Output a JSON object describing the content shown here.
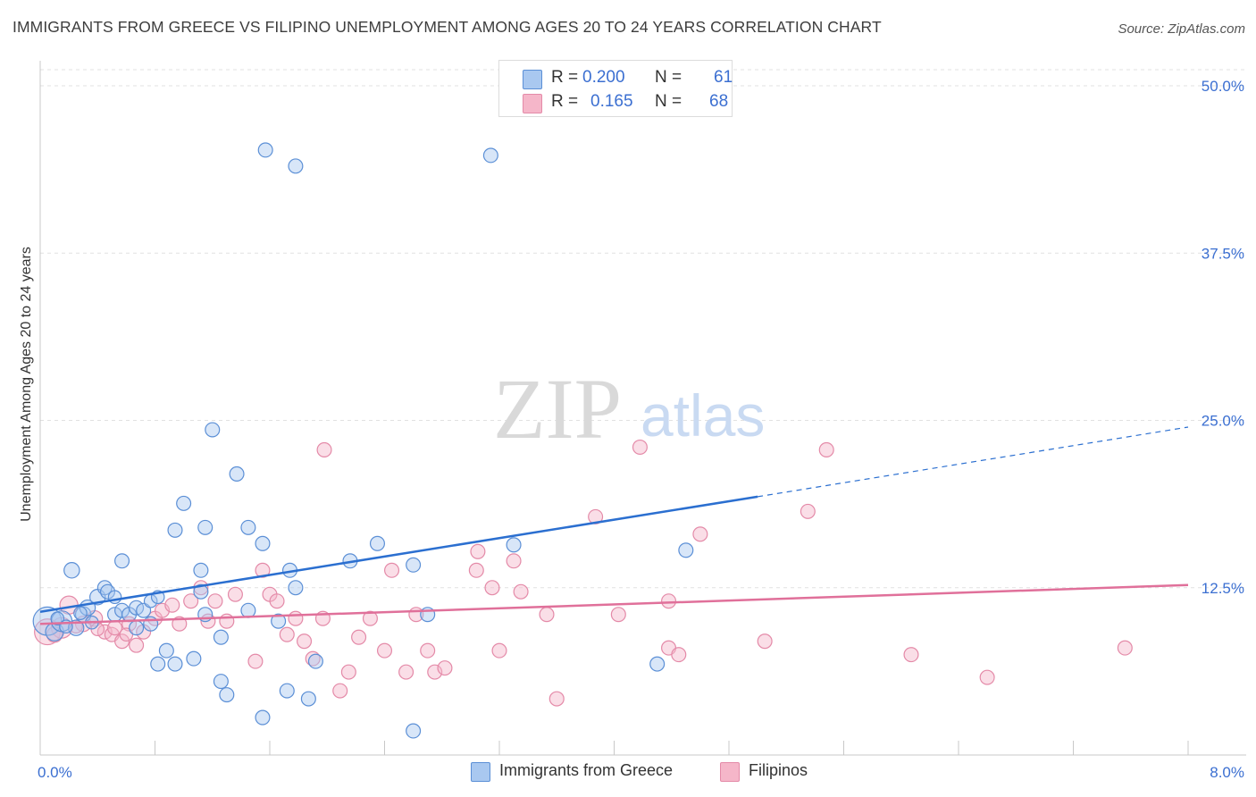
{
  "title": "IMMIGRANTS FROM GREECE VS FILIPINO UNEMPLOYMENT AMONG AGES 20 TO 24 YEARS CORRELATION CHART",
  "source": "Source: ZipAtlas.com",
  "watermark": {
    "zip": "ZIP",
    "atlas": "atlas"
  },
  "colors": {
    "blue_fill": "#a9c8f0",
    "blue_stroke": "#5b8fd6",
    "blue_line": "#2b6fd0",
    "pink_fill": "#f5b6c9",
    "pink_stroke": "#e48aa8",
    "pink_line": "#e0709a",
    "tick_text": "#3b6fd1",
    "grid": "#e1e1e1"
  },
  "legend": {
    "rows": [
      {
        "r_label": "R =",
        "r_value": "0.200",
        "n_label": "N =",
        "n_value": "61"
      },
      {
        "r_label": "R =",
        "r_value": "0.165",
        "n_label": "N =",
        "n_value": "68"
      }
    ]
  },
  "bottom_legend": [
    {
      "name": "Immigrants from Greece"
    },
    {
      "name": "Filipinos"
    }
  ],
  "chart_data": {
    "type": "scatter",
    "title": "IMMIGRANTS FROM GREECE VS FILIPINO UNEMPLOYMENT AMONG AGES 20 TO 24 YEARS CORRELATION CHART",
    "xlabel": "",
    "ylabel": "Unemployment Among Ages 20 to 24 years",
    "xlim": [
      0,
      8
    ],
    "ylim": [
      0,
      50
    ],
    "x_tick_labels": [
      {
        "value": 0,
        "label": "0.0%"
      },
      {
        "value": 8,
        "label": "8.0%"
      }
    ],
    "y_tick_labels": [
      {
        "value": 12.5,
        "label": "12.5%"
      },
      {
        "value": 25,
        "label": "25.0%"
      },
      {
        "value": 37.5,
        "label": "37.5%"
      },
      {
        "value": 50,
        "label": "50.0%"
      }
    ],
    "x_minor_ticks": [
      0.8,
      1.6,
      2.4,
      3.2,
      4.0,
      4.8,
      5.6,
      6.4,
      7.2,
      8.0
    ],
    "grid": true,
    "series": [
      {
        "name": "Immigrants from Greece",
        "R": 0.2,
        "N": 61,
        "trend": {
          "x0": 0,
          "y0": 10.7,
          "x1": 5.0,
          "y1": 19.3,
          "dashed_to_x": 8.0,
          "dashed_to_y": 24.5
        },
        "points": [
          [
            0.05,
            10.0,
            22
          ],
          [
            0.1,
            9.2,
            14
          ],
          [
            0.15,
            10.0,
            16
          ],
          [
            0.25,
            9.5,
            12
          ],
          [
            0.3,
            10.5,
            12
          ],
          [
            0.22,
            13.8,
            12
          ],
          [
            0.33,
            11.0,
            12
          ],
          [
            0.4,
            11.8,
            12
          ],
          [
            0.45,
            12.5,
            11
          ],
          [
            0.47,
            12.2,
            11
          ],
          [
            0.52,
            11.8,
            10
          ],
          [
            0.52,
            10.5,
            11
          ],
          [
            0.57,
            10.8,
            11
          ],
          [
            0.57,
            14.5,
            11
          ],
          [
            0.62,
            10.5,
            11
          ],
          [
            0.67,
            9.5,
            11
          ],
          [
            0.67,
            11.0,
            11
          ],
          [
            0.72,
            10.8,
            11
          ],
          [
            0.77,
            11.5,
            10
          ],
          [
            0.82,
            11.8,
            10
          ],
          [
            0.77,
            9.8,
            11
          ],
          [
            0.82,
            6.8,
            11
          ],
          [
            0.88,
            7.8,
            11
          ],
          [
            0.94,
            16.8,
            11
          ],
          [
            1.0,
            18.8,
            11
          ],
          [
            0.94,
            6.8,
            11
          ],
          [
            1.07,
            7.2,
            11
          ],
          [
            1.12,
            12.2,
            11
          ],
          [
            1.12,
            13.8,
            11
          ],
          [
            1.15,
            10.5,
            11
          ],
          [
            1.15,
            17.0,
            11
          ],
          [
            1.2,
            24.3,
            11
          ],
          [
            1.26,
            8.8,
            11
          ],
          [
            1.26,
            5.5,
            11
          ],
          [
            1.3,
            4.5,
            11
          ],
          [
            1.37,
            21.0,
            11
          ],
          [
            1.45,
            17.0,
            11
          ],
          [
            1.45,
            10.8,
            11
          ],
          [
            1.55,
            15.8,
            11
          ],
          [
            1.55,
            2.8,
            11
          ],
          [
            1.57,
            45.2,
            11
          ],
          [
            1.66,
            10.0,
            11
          ],
          [
            1.72,
            4.8,
            11
          ],
          [
            1.74,
            13.8,
            11
          ],
          [
            1.78,
            12.5,
            11
          ],
          [
            1.78,
            44.0,
            11
          ],
          [
            1.87,
            4.2,
            11
          ],
          [
            1.92,
            7.0,
            11
          ],
          [
            2.16,
            14.5,
            11
          ],
          [
            2.35,
            15.8,
            11
          ],
          [
            2.6,
            14.2,
            11
          ],
          [
            2.6,
            1.8,
            11
          ],
          [
            2.7,
            10.5,
            11
          ],
          [
            3.14,
            44.8,
            11
          ],
          [
            3.3,
            15.7,
            11
          ],
          [
            4.3,
            6.8,
            11
          ],
          [
            4.5,
            15.3,
            11
          ],
          [
            0.12,
            10.2,
            10
          ],
          [
            0.18,
            9.6,
            10
          ],
          [
            0.28,
            10.6,
            10
          ],
          [
            0.36,
            9.9,
            10
          ]
        ]
      },
      {
        "name": "Filipinos",
        "R": 0.165,
        "N": 68,
        "trend": {
          "x0": 0,
          "y0": 9.8,
          "x1": 8.0,
          "y1": 12.7
        },
        "points": [
          [
            0.05,
            9.2,
            20
          ],
          [
            0.15,
            9.5,
            16
          ],
          [
            0.2,
            11.2,
            14
          ],
          [
            0.3,
            9.8,
            12
          ],
          [
            0.38,
            10.2,
            12
          ],
          [
            0.45,
            9.2,
            11
          ],
          [
            0.5,
            9.0,
            11
          ],
          [
            0.52,
            9.5,
            11
          ],
          [
            0.57,
            8.5,
            11
          ],
          [
            0.62,
            9.8,
            11
          ],
          [
            0.67,
            8.2,
            11
          ],
          [
            0.72,
            9.2,
            11
          ],
          [
            0.8,
            10.2,
            11
          ],
          [
            0.85,
            10.8,
            11
          ],
          [
            0.92,
            11.2,
            11
          ],
          [
            0.97,
            9.8,
            11
          ],
          [
            1.05,
            11.5,
            11
          ],
          [
            1.12,
            12.5,
            11
          ],
          [
            1.17,
            10.0,
            11
          ],
          [
            1.22,
            11.5,
            11
          ],
          [
            1.3,
            10.0,
            11
          ],
          [
            1.36,
            12.0,
            11
          ],
          [
            1.5,
            7.0,
            11
          ],
          [
            1.55,
            13.8,
            11
          ],
          [
            1.6,
            12.0,
            11
          ],
          [
            1.65,
            11.5,
            11
          ],
          [
            1.72,
            9.0,
            11
          ],
          [
            1.78,
            10.2,
            11
          ],
          [
            1.84,
            8.5,
            11
          ],
          [
            1.9,
            7.2,
            11
          ],
          [
            1.97,
            10.2,
            11
          ],
          [
            1.98,
            22.8,
            11
          ],
          [
            2.09,
            4.8,
            11
          ],
          [
            2.15,
            6.2,
            11
          ],
          [
            2.22,
            8.8,
            11
          ],
          [
            2.3,
            10.2,
            11
          ],
          [
            2.4,
            7.8,
            11
          ],
          [
            2.45,
            13.8,
            11
          ],
          [
            2.55,
            6.2,
            11
          ],
          [
            2.62,
            10.5,
            11
          ],
          [
            2.7,
            7.8,
            11
          ],
          [
            2.75,
            6.2,
            11
          ],
          [
            2.82,
            6.5,
            11
          ],
          [
            3.04,
            13.8,
            11
          ],
          [
            3.05,
            15.2,
            11
          ],
          [
            3.15,
            12.5,
            11
          ],
          [
            3.2,
            7.8,
            11
          ],
          [
            3.3,
            14.5,
            11
          ],
          [
            3.35,
            12.2,
            11
          ],
          [
            3.53,
            10.5,
            11
          ],
          [
            3.6,
            4.2,
            11
          ],
          [
            3.87,
            17.8,
            11
          ],
          [
            4.03,
            10.5,
            11
          ],
          [
            4.18,
            23.0,
            11
          ],
          [
            4.38,
            11.5,
            11
          ],
          [
            4.38,
            8.0,
            11
          ],
          [
            4.45,
            7.5,
            11
          ],
          [
            4.6,
            16.5,
            11
          ],
          [
            5.05,
            8.5,
            11
          ],
          [
            5.35,
            18.2,
            11
          ],
          [
            5.48,
            22.8,
            11
          ],
          [
            6.07,
            7.5,
            11
          ],
          [
            6.6,
            5.8,
            11
          ],
          [
            7.56,
            8.0,
            11
          ],
          [
            0.1,
            9.0,
            12
          ],
          [
            0.25,
            9.6,
            10
          ],
          [
            0.4,
            9.4,
            10
          ],
          [
            0.6,
            9.0,
            10
          ]
        ]
      }
    ]
  }
}
